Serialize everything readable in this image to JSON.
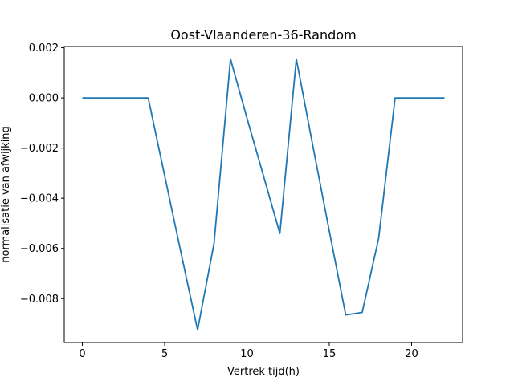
{
  "chart_data": {
    "type": "line",
    "title": "Oost-Vlaanderen-36-Random",
    "xlabel": "Vertrek tijd(h)",
    "ylabel": "normalisatie van afwijking",
    "xlim": [
      -1.1,
      23.1
    ],
    "ylim": [
      -0.00975,
      0.00205
    ],
    "xticks": [
      0,
      5,
      10,
      15,
      20
    ],
    "xtick_labels": [
      "0",
      "5",
      "10",
      "15",
      "20"
    ],
    "yticks": [
      0.002,
      0.0,
      -0.002,
      -0.004,
      -0.006,
      -0.008
    ],
    "ytick_labels": [
      "0.002",
      "0.000",
      "−0.002",
      "−0.004",
      "−0.006",
      "−0.008"
    ],
    "grid": false,
    "color": "#1f77b4",
    "series": [
      {
        "x": [
          0,
          1,
          2,
          3,
          4,
          5,
          6,
          7,
          8,
          9,
          10,
          11,
          12,
          13,
          14,
          15,
          16,
          17,
          18,
          19,
          20,
          21,
          22
        ],
        "y": [
          0.0,
          0.0,
          0.0,
          0.0,
          0.0,
          -0.0031,
          -0.0062,
          -0.00925,
          -0.0058,
          0.00155,
          -0.0008,
          -0.0031,
          -0.0054,
          0.00155,
          -0.0019,
          -0.0053,
          -0.00865,
          -0.00855,
          -0.0056,
          0.0,
          0.0,
          0.0,
          0.0
        ]
      }
    ]
  }
}
